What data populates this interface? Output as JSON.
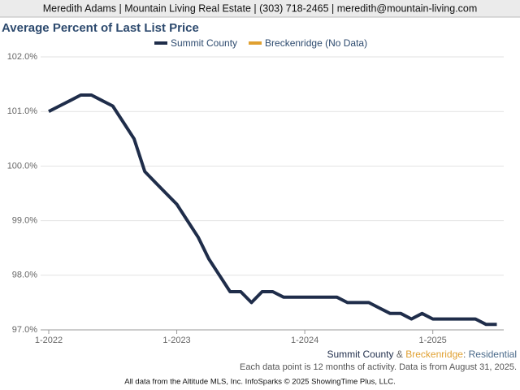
{
  "header": "Meredith Adams | Mountain Living Real Estate | (303) 718-2465 | meredith@mountain-living.com",
  "chart_data": {
    "type": "line",
    "title": "Average Percent of Last List Price",
    "categories": [
      "1-2022",
      null,
      null,
      null,
      null,
      null,
      null,
      null,
      null,
      null,
      null,
      null,
      "1-2023",
      null,
      null,
      null,
      null,
      null,
      null,
      null,
      null,
      null,
      null,
      null,
      "1-2024",
      null,
      null,
      null,
      null,
      null,
      null,
      null,
      null,
      null,
      null,
      null,
      "1-2025",
      null,
      null,
      null,
      null,
      null,
      null
    ],
    "series": [
      {
        "name": "Summit County",
        "color": "#1f2d4a",
        "values": [
          101.0,
          101.1,
          101.2,
          101.3,
          101.3,
          101.2,
          101.1,
          100.8,
          100.5,
          99.9,
          99.7,
          99.5,
          99.3,
          99.0,
          98.7,
          98.3,
          98.0,
          97.7,
          97.7,
          97.5,
          97.7,
          97.7,
          97.6,
          97.6,
          97.6,
          97.6,
          97.6,
          97.6,
          97.5,
          97.5,
          97.5,
          97.4,
          97.3,
          97.3,
          97.2,
          97.3,
          97.2,
          97.2,
          97.2,
          97.2,
          97.2,
          97.1,
          97.1
        ]
      },
      {
        "name": "Breckenridge (No Data)",
        "color": "#e0a030",
        "values": [
          null,
          null,
          null,
          null,
          null,
          null,
          null,
          null,
          null,
          null,
          null,
          null,
          null,
          null,
          null,
          null,
          null,
          null,
          null,
          null,
          null,
          null,
          null,
          null,
          null,
          null,
          null,
          null,
          null,
          null,
          null,
          null,
          null,
          null,
          null,
          null,
          null,
          null,
          null,
          null,
          null,
          null,
          null
        ]
      }
    ],
    "ylim": [
      97.0,
      102.0
    ],
    "yticks": [
      {
        "value": 97,
        "label": "97.0%"
      },
      {
        "value": 98,
        "label": "98.0%"
      },
      {
        "value": 99,
        "label": "99.0%"
      },
      {
        "value": 100,
        "label": "100.0%"
      },
      {
        "value": 101,
        "label": "101.0%"
      },
      {
        "value": 102,
        "label": "102.0%"
      }
    ],
    "grid": true,
    "legend": "top"
  },
  "footnote": {
    "scope": [
      "Summit County",
      "&",
      "Breckenridge",
      ":",
      "Residential"
    ],
    "note": "Each data point is 12 months of activity. Data is from August 31, 2025."
  },
  "credit": "All data from the Altitude MLS, Inc. InfoSparks © 2025 ShowingTime Plus, LLC."
}
